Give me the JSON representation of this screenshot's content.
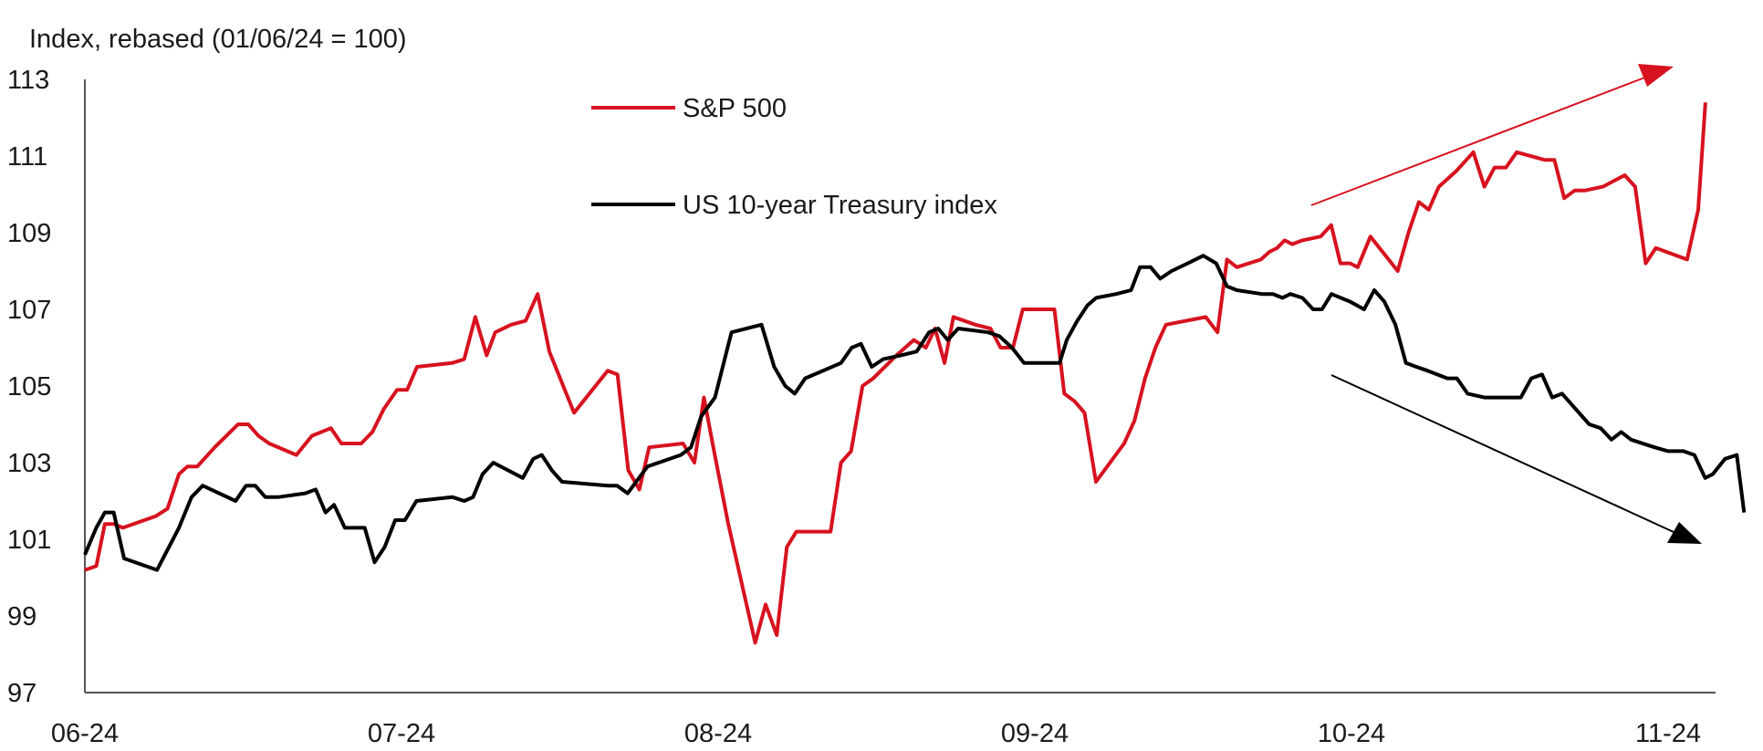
{
  "chart_data": {
    "type": "line",
    "ylabel": "Index, rebased (01/06/24 = 100)",
    "ylim": [
      97,
      113
    ],
    "yticks": [
      97,
      99,
      101,
      103,
      105,
      107,
      109,
      111,
      113
    ],
    "xlim": [
      0,
      5.13
    ],
    "xticks": [
      {
        "x": 0,
        "label": "06-24"
      },
      {
        "x": 1,
        "label": "07-24"
      },
      {
        "x": 2,
        "label": "08-24"
      },
      {
        "x": 3,
        "label": "09-24"
      },
      {
        "x": 4,
        "label": "10-24"
      },
      {
        "x": 5,
        "label": "11-24"
      }
    ],
    "grid": false,
    "legend_position": "top-center",
    "colors": {
      "sp500": "#d7121f",
      "treasury": "#000000"
    },
    "series": [
      {
        "name": "S&P 500",
        "color": "#d7121f",
        "points": [
          [
            0.0,
            100.2
          ],
          [
            0.036,
            100.3
          ],
          [
            0.063,
            101.4
          ],
          [
            0.091,
            101.4
          ],
          [
            0.12,
            101.3
          ],
          [
            0.223,
            101.6
          ],
          [
            0.261,
            101.8
          ],
          [
            0.297,
            102.7
          ],
          [
            0.324,
            102.9
          ],
          [
            0.355,
            102.9
          ],
          [
            0.41,
            103.4
          ],
          [
            0.484,
            104.0
          ],
          [
            0.516,
            104.0
          ],
          [
            0.548,
            103.7
          ],
          [
            0.582,
            103.5
          ],
          [
            0.668,
            103.2
          ],
          [
            0.717,
            103.7
          ],
          [
            0.777,
            103.9
          ],
          [
            0.81,
            103.5
          ],
          [
            0.873,
            103.5
          ],
          [
            0.908,
            103.8
          ],
          [
            0.944,
            104.4
          ],
          [
            0.986,
            104.9
          ],
          [
            1.018,
            104.9
          ],
          [
            1.049,
            105.5
          ],
          [
            1.16,
            105.6
          ],
          [
            1.198,
            105.7
          ],
          [
            1.233,
            106.8
          ],
          [
            1.269,
            105.8
          ],
          [
            1.296,
            106.4
          ],
          [
            1.346,
            106.6
          ],
          [
            1.392,
            106.7
          ],
          [
            1.43,
            107.4
          ],
          [
            1.467,
            105.9
          ],
          [
            1.545,
            104.3
          ],
          [
            1.651,
            105.4
          ],
          [
            1.682,
            105.3
          ],
          [
            1.716,
            102.8
          ],
          [
            1.751,
            102.3
          ],
          [
            1.782,
            103.4
          ],
          [
            1.889,
            103.5
          ],
          [
            1.925,
            103.0
          ],
          [
            1.955,
            104.7
          ],
          [
            1.987,
            103.3
          ],
          [
            2.032,
            101.4
          ],
          [
            2.117,
            98.3
          ],
          [
            2.15,
            99.3
          ],
          [
            2.185,
            98.5
          ],
          [
            2.217,
            100.8
          ],
          [
            2.247,
            101.2
          ],
          [
            2.33,
            101.2
          ],
          [
            2.355,
            101.2
          ],
          [
            2.388,
            103.0
          ],
          [
            2.42,
            103.3
          ],
          [
            2.456,
            105.0
          ],
          [
            2.49,
            105.2
          ],
          [
            2.563,
            105.8
          ],
          [
            2.618,
            106.2
          ],
          [
            2.656,
            106.0
          ],
          [
            2.685,
            106.5
          ],
          [
            2.715,
            105.6
          ],
          [
            2.743,
            106.8
          ],
          [
            2.812,
            106.6
          ],
          [
            2.86,
            106.5
          ],
          [
            2.892,
            106.0
          ],
          [
            2.931,
            106.0
          ],
          [
            2.962,
            107.0
          ],
          [
            3.062,
            107.0
          ],
          [
            3.093,
            104.8
          ],
          [
            3.126,
            104.6
          ],
          [
            3.157,
            104.3
          ],
          [
            3.193,
            102.5
          ],
          [
            3.282,
            103.5
          ],
          [
            3.315,
            104.1
          ],
          [
            3.348,
            105.2
          ],
          [
            3.381,
            106.0
          ],
          [
            3.414,
            106.6
          ],
          [
            3.54,
            106.8
          ],
          [
            3.577,
            106.4
          ],
          [
            3.607,
            108.3
          ],
          [
            3.638,
            108.1
          ],
          [
            3.714,
            108.3
          ],
          [
            3.741,
            108.5
          ],
          [
            3.765,
            108.6
          ],
          [
            3.789,
            108.8
          ],
          [
            3.813,
            108.7
          ],
          [
            3.845,
            108.8
          ],
          [
            3.903,
            108.9
          ],
          [
            3.936,
            109.2
          ],
          [
            3.965,
            108.2
          ],
          [
            3.996,
            108.2
          ],
          [
            4.02,
            108.1
          ],
          [
            4.06,
            108.9
          ],
          [
            4.146,
            108.0
          ],
          [
            4.18,
            109.0
          ],
          [
            4.213,
            109.8
          ],
          [
            4.244,
            109.6
          ],
          [
            4.276,
            110.2
          ],
          [
            4.33,
            110.6
          ],
          [
            4.385,
            111.1
          ],
          [
            4.42,
            110.2
          ],
          [
            4.452,
            110.7
          ],
          [
            4.488,
            110.7
          ],
          [
            4.522,
            111.1
          ],
          [
            4.61,
            110.9
          ],
          [
            4.641,
            110.9
          ],
          [
            4.672,
            109.9
          ],
          [
            4.705,
            110.1
          ],
          [
            4.737,
            110.1
          ],
          [
            4.794,
            110.2
          ],
          [
            4.863,
            110.5
          ],
          [
            4.896,
            110.2
          ],
          [
            4.929,
            108.2
          ],
          [
            4.961,
            108.6
          ],
          [
            5.06,
            108.3
          ],
          [
            5.095,
            109.6
          ],
          [
            5.118,
            112.4
          ]
        ]
      },
      {
        "name": "US 10-year Treasury index",
        "color": "#000000",
        "points": [
          [
            0.0,
            100.6
          ],
          [
            0.036,
            101.3
          ],
          [
            0.063,
            101.7
          ],
          [
            0.091,
            101.7
          ],
          [
            0.124,
            100.5
          ],
          [
            0.228,
            100.2
          ],
          [
            0.297,
            101.3
          ],
          [
            0.337,
            102.1
          ],
          [
            0.372,
            102.4
          ],
          [
            0.476,
            102.0
          ],
          [
            0.509,
            102.4
          ],
          [
            0.538,
            102.4
          ],
          [
            0.57,
            102.1
          ],
          [
            0.61,
            102.1
          ],
          [
            0.696,
            102.2
          ],
          [
            0.729,
            102.3
          ],
          [
            0.76,
            101.7
          ],
          [
            0.787,
            101.9
          ],
          [
            0.821,
            101.3
          ],
          [
            0.884,
            101.3
          ],
          [
            0.915,
            100.4
          ],
          [
            0.947,
            100.8
          ],
          [
            0.98,
            101.5
          ],
          [
            1.011,
            101.5
          ],
          [
            1.047,
            102.0
          ],
          [
            1.161,
            102.1
          ],
          [
            1.198,
            102.0
          ],
          [
            1.226,
            102.1
          ],
          [
            1.256,
            102.7
          ],
          [
            1.29,
            103.0
          ],
          [
            1.383,
            102.6
          ],
          [
            1.416,
            103.1
          ],
          [
            1.443,
            103.2
          ],
          [
            1.475,
            102.8
          ],
          [
            1.507,
            102.5
          ],
          [
            1.653,
            102.4
          ],
          [
            1.681,
            102.4
          ],
          [
            1.714,
            102.2
          ],
          [
            1.777,
            102.9
          ],
          [
            1.882,
            103.2
          ],
          [
            1.914,
            103.4
          ],
          [
            1.946,
            104.2
          ],
          [
            1.99,
            104.7
          ],
          [
            2.042,
            106.4
          ],
          [
            2.137,
            106.6
          ],
          [
            2.177,
            105.5
          ],
          [
            2.212,
            105.0
          ],
          [
            2.242,
            104.8
          ],
          [
            2.275,
            105.2
          ],
          [
            2.388,
            105.6
          ],
          [
            2.422,
            106.0
          ],
          [
            2.451,
            106.1
          ],
          [
            2.485,
            105.5
          ],
          [
            2.521,
            105.7
          ],
          [
            2.577,
            105.8
          ],
          [
            2.627,
            105.9
          ],
          [
            2.666,
            106.4
          ],
          [
            2.695,
            106.5
          ],
          [
            2.725,
            106.2
          ],
          [
            2.758,
            106.5
          ],
          [
            2.853,
            106.4
          ],
          [
            2.888,
            106.3
          ],
          [
            2.928,
            106.0
          ],
          [
            2.966,
            105.6
          ],
          [
            2.994,
            105.6
          ],
          [
            3.078,
            105.6
          ],
          [
            3.101,
            106.2
          ],
          [
            3.134,
            106.7
          ],
          [
            3.166,
            107.1
          ],
          [
            3.194,
            107.3
          ],
          [
            3.257,
            107.4
          ],
          [
            3.304,
            107.5
          ],
          [
            3.332,
            108.1
          ],
          [
            3.366,
            108.1
          ],
          [
            3.396,
            107.8
          ],
          [
            3.432,
            108.0
          ],
          [
            3.483,
            108.2
          ],
          [
            3.532,
            108.4
          ],
          [
            3.573,
            108.2
          ],
          [
            3.607,
            107.6
          ],
          [
            3.638,
            107.5
          ],
          [
            3.717,
            107.4
          ],
          [
            3.752,
            107.4
          ],
          [
            3.782,
            107.3
          ],
          [
            3.807,
            107.4
          ],
          [
            3.845,
            107.3
          ],
          [
            3.879,
            107.0
          ],
          [
            3.907,
            107.0
          ],
          [
            3.937,
            107.4
          ],
          [
            3.996,
            107.2
          ],
          [
            4.04,
            107.0
          ],
          [
            4.072,
            107.5
          ],
          [
            4.104,
            107.2
          ],
          [
            4.139,
            106.6
          ],
          [
            4.172,
            105.6
          ],
          [
            4.205,
            105.5
          ],
          [
            4.24,
            105.4
          ],
          [
            4.303,
            105.2
          ],
          [
            4.333,
            105.2
          ],
          [
            4.367,
            104.8
          ],
          [
            4.42,
            104.7
          ],
          [
            4.474,
            104.7
          ],
          [
            4.535,
            104.7
          ],
          [
            4.568,
            105.2
          ],
          [
            4.602,
            105.3
          ],
          [
            4.634,
            104.7
          ],
          [
            4.665,
            104.8
          ],
          [
            4.751,
            104.0
          ],
          [
            4.787,
            103.9
          ],
          [
            4.821,
            103.6
          ],
          [
            4.852,
            103.8
          ],
          [
            4.883,
            103.6
          ],
          [
            4.957,
            103.4
          ],
          [
            5.0,
            103.3
          ],
          [
            5.048,
            103.3
          ],
          [
            5.083,
            103.2
          ],
          [
            5.117,
            102.6
          ],
          [
            5.141,
            102.7
          ],
          [
            5.18,
            103.1
          ],
          [
            5.217,
            103.2
          ],
          [
            5.24,
            101.7
          ]
        ]
      }
    ]
  }
}
